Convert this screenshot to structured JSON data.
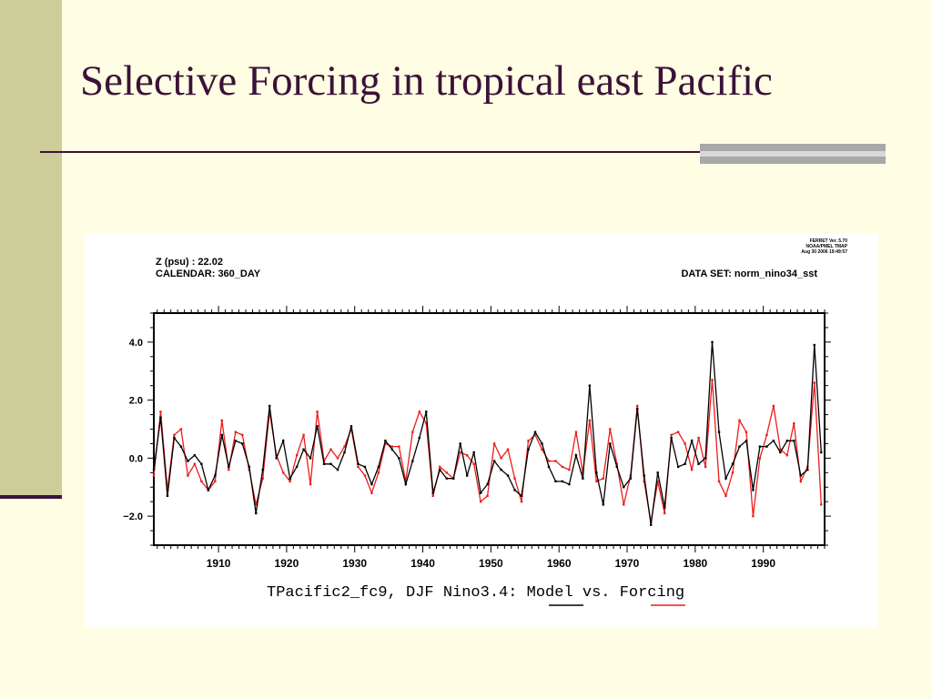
{
  "slide": {
    "title": "Selective Forcing in tropical east Pacific"
  },
  "figure": {
    "header_left_line1": "Z (psu) : 22.02",
    "header_left_line2": "CALENDAR: 360_DAY",
    "header_right_dataset": "DATA SET: norm_nino34_sst",
    "stamp_line1": "FERRET Ver. 5.70",
    "stamp_line2": "NOAA/PMEL TMAP",
    "stamp_line3": "Aug 30 2006 19:49:57",
    "caption_prefix": "TPacific2_fc9, DJF Nino3.4: ",
    "caption_model": "Model",
    "caption_vs": " vs. ",
    "caption_forcing": "Forcing"
  },
  "chart_data": {
    "type": "line",
    "title": "TPacific2_fc9, DJF Nino3.4: Model vs. Forcing",
    "xlabel": "",
    "ylabel": "",
    "xlim": [
      1900.5,
      1999
    ],
    "ylim": [
      -3.0,
      5.0
    ],
    "x_ticks": [
      1910,
      1920,
      1930,
      1940,
      1950,
      1960,
      1970,
      1980,
      1990
    ],
    "y_ticks": [
      {
        "value": 4.0,
        "label": "4.0"
      },
      {
        "value": 2.0,
        "label": "2.0"
      },
      {
        "value": 0.0,
        "label": "0.0"
      },
      {
        "value": -2.0,
        "label": "−2.0"
      }
    ],
    "grid": false,
    "colors": {
      "model": "#000000",
      "forcing": "#ee1c1c"
    },
    "x": [
      1900.5,
      1901.5,
      1902.5,
      1903.5,
      1904.5,
      1905.5,
      1906.5,
      1907.5,
      1908.5,
      1909.5,
      1910.5,
      1911.5,
      1912.5,
      1913.5,
      1914.5,
      1915.5,
      1916.5,
      1917.5,
      1918.5,
      1919.5,
      1920.5,
      1921.5,
      1922.5,
      1923.5,
      1924.5,
      1925.5,
      1926.5,
      1927.5,
      1928.5,
      1929.5,
      1930.5,
      1931.5,
      1932.5,
      1933.5,
      1934.5,
      1935.5,
      1936.5,
      1937.5,
      1938.5,
      1939.5,
      1940.5,
      1941.5,
      1942.5,
      1943.5,
      1944.5,
      1945.5,
      1946.5,
      1947.5,
      1948.5,
      1949.5,
      1950.5,
      1951.5,
      1952.5,
      1953.5,
      1954.5,
      1955.5,
      1956.5,
      1957.5,
      1958.5,
      1959.5,
      1960.5,
      1961.5,
      1962.5,
      1963.5,
      1964.5,
      1965.5,
      1966.5,
      1967.5,
      1968.5,
      1969.5,
      1970.5,
      1971.5,
      1972.5,
      1973.5,
      1974.5,
      1975.5,
      1976.5,
      1977.5,
      1978.5,
      1979.5,
      1980.5,
      1981.5,
      1982.5,
      1983.5,
      1984.5,
      1985.5,
      1986.5,
      1987.5,
      1988.5,
      1989.5,
      1990.5,
      1991.5,
      1992.5,
      1993.5,
      1994.5,
      1995.5,
      1996.5,
      1997.5,
      1998.5
    ],
    "series": [
      {
        "name": "Model",
        "values": [
          -0.4,
          1.4,
          -1.3,
          0.7,
          0.4,
          -0.1,
          0.1,
          -0.2,
          -1.1,
          -0.6,
          0.8,
          -0.3,
          0.6,
          0.5,
          -0.3,
          -1.9,
          -0.4,
          1.8,
          0.0,
          0.6,
          -0.7,
          -0.3,
          0.3,
          0.0,
          1.1,
          -0.2,
          -0.2,
          -0.4,
          0.2,
          1.1,
          -0.2,
          -0.3,
          -0.9,
          -0.3,
          0.6,
          0.3,
          0.0,
          -0.9,
          -0.1,
          0.7,
          1.6,
          -1.2,
          -0.4,
          -0.7,
          -0.7,
          0.5,
          -0.6,
          0.2,
          -1.2,
          -0.9,
          -0.1,
          -0.4,
          -0.6,
          -1.1,
          -1.3,
          0.3,
          0.9,
          0.5,
          -0.3,
          -0.8,
          -0.8,
          -0.9,
          0.1,
          -0.7,
          2.5,
          -0.5,
          -1.6,
          0.5,
          -0.3,
          -1.0,
          -0.7,
          1.7,
          -0.6,
          -2.3,
          -0.5,
          -1.7,
          0.7,
          -0.3,
          -0.2,
          0.6,
          -0.2,
          0.0,
          4.0,
          0.9,
          -0.7,
          -0.2,
          0.4,
          0.6,
          -1.1,
          0.4,
          0.4,
          0.6,
          0.2,
          0.6,
          0.6,
          -0.6,
          -0.4,
          3.9,
          0.2
        ]
      },
      {
        "name": "Forcing",
        "values": [
          -0.6,
          1.6,
          -1.1,
          0.8,
          1.0,
          -0.6,
          -0.2,
          -0.8,
          -1.1,
          -0.8,
          1.3,
          -0.4,
          0.9,
          0.8,
          -0.4,
          -1.6,
          -0.7,
          1.6,
          0.1,
          -0.5,
          -0.8,
          0.1,
          0.8,
          -0.9,
          1.6,
          -0.1,
          0.3,
          0.0,
          0.4,
          1.0,
          -0.3,
          -0.6,
          -1.2,
          -0.5,
          0.5,
          0.4,
          0.4,
          -0.8,
          0.9,
          1.6,
          1.2,
          -1.3,
          -0.3,
          -0.5,
          -0.7,
          0.2,
          0.1,
          -0.2,
          -1.5,
          -1.3,
          0.5,
          0.0,
          0.3,
          -0.7,
          -1.5,
          0.6,
          0.8,
          0.3,
          -0.1,
          -0.1,
          -0.3,
          -0.4,
          0.9,
          -0.5,
          1.3,
          -0.8,
          -0.7,
          1.0,
          -0.2,
          -1.6,
          -0.6,
          1.8,
          -0.8,
          -2.2,
          -0.8,
          -1.9,
          0.8,
          0.9,
          0.5,
          -0.4,
          0.7,
          -0.3,
          2.7,
          -0.8,
          -1.3,
          -0.5,
          1.3,
          0.9,
          -2.0,
          0.0,
          0.8,
          1.8,
          0.3,
          0.1,
          1.2,
          -0.8,
          -0.3,
          2.6,
          -1.6
        ]
      }
    ]
  }
}
